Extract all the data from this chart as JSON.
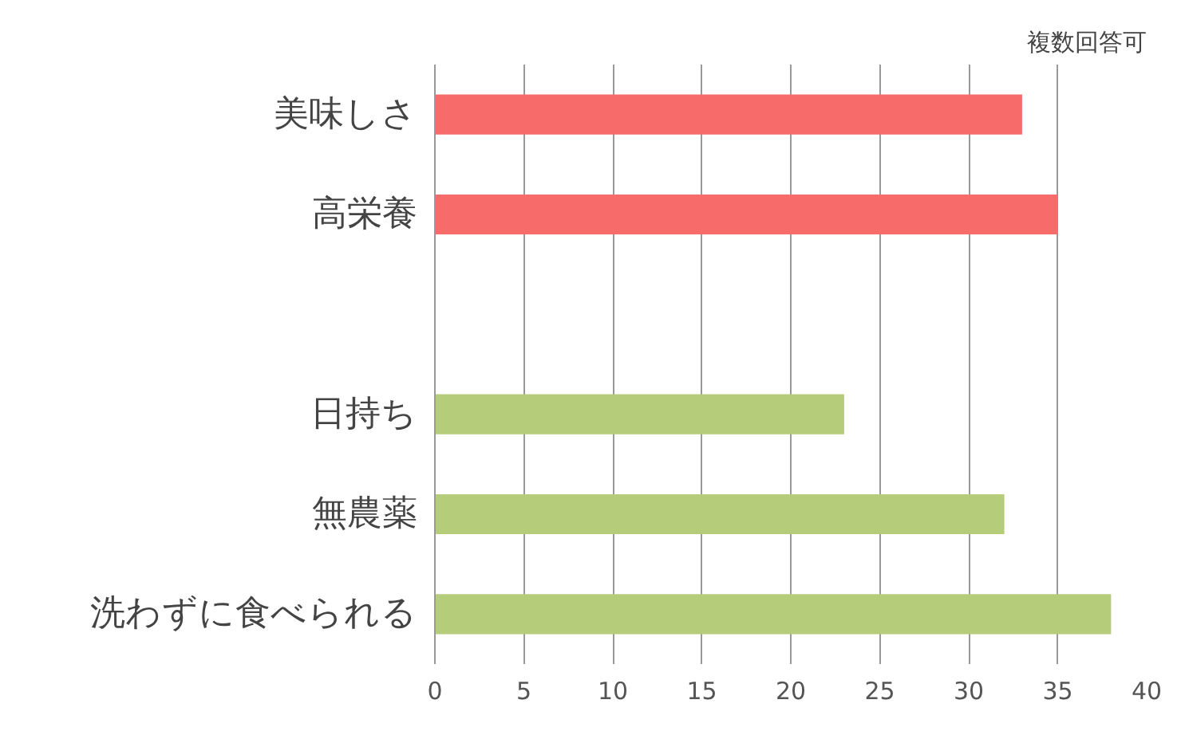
{
  "chart_data": {
    "type": "bar",
    "orientation": "horizontal",
    "categories": [
      "美味しさ",
      "高栄養",
      null,
      "日持ち",
      "無農薬",
      "洗わずに食べられる"
    ],
    "values": [
      33,
      35,
      null,
      23,
      32,
      38
    ],
    "colors": [
      "#f76b6b",
      "#f76b6b",
      null,
      "#b5cc7a",
      "#b5cc7a",
      "#b5cc7a"
    ],
    "xlim": [
      0,
      40
    ],
    "xticks": [
      0,
      5,
      10,
      15,
      20,
      25,
      30,
      35,
      40
    ],
    "grid": "x",
    "annotations": [
      "複数回答可"
    ]
  }
}
